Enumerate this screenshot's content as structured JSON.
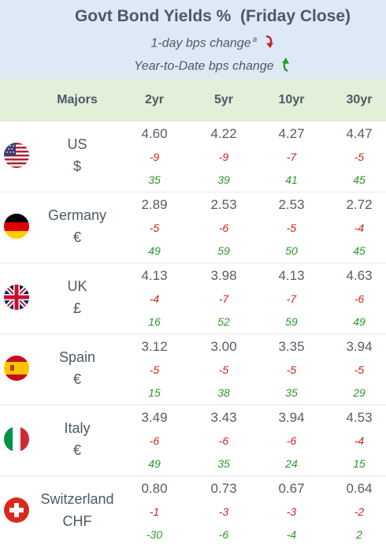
{
  "header": {
    "title": "Govt Bond Yields %  (Friday Close)",
    "legend_day": "1-day bps change",
    "legend_day_sup": "a",
    "legend_ytd": "Year-to-Date bps change",
    "colors": {
      "down": "#cc2222",
      "up": "#2a9a2a",
      "header_bg": "#ddeaf6",
      "colhead_bg": "#e2efd9"
    }
  },
  "columns": {
    "majors": "Majors",
    "c2": "2yr",
    "c5": "5yr",
    "c10": "10yr",
    "c30": "30yr"
  },
  "rows": [
    {
      "name": "US",
      "currency": "$",
      "flag": "us-flag-icon",
      "yield": [
        "4.60",
        "4.22",
        "4.27",
        "4.47"
      ],
      "day": [
        "-9",
        "-9",
        "-7",
        "-5"
      ],
      "ytd": [
        "35",
        "39",
        "41",
        "45"
      ]
    },
    {
      "name": "Germany",
      "currency": "€",
      "flag": "germany-flag-icon",
      "yield": [
        "2.89",
        "2.53",
        "2.53",
        "2.72"
      ],
      "day": [
        "-5",
        "-6",
        "-5",
        "-4"
      ],
      "ytd": [
        "49",
        "59",
        "50",
        "45"
      ]
    },
    {
      "name": "UK",
      "currency": "£",
      "flag": "uk-flag-icon",
      "yield": [
        "4.13",
        "3.98",
        "4.13",
        "4.63"
      ],
      "day": [
        "-4",
        "-7",
        "-7",
        "-6"
      ],
      "ytd": [
        "16",
        "52",
        "59",
        "49"
      ]
    },
    {
      "name": "Spain",
      "currency": "€",
      "flag": "spain-flag-icon",
      "yield": [
        "3.12",
        "3.00",
        "3.35",
        "3.94"
      ],
      "day": [
        "-5",
        "-5",
        "-5",
        "-5"
      ],
      "ytd": [
        "15",
        "38",
        "35",
        "29"
      ]
    },
    {
      "name": "Italy",
      "currency": "€",
      "flag": "italy-flag-icon",
      "yield": [
        "3.49",
        "3.43",
        "3.94",
        "4.53"
      ],
      "day": [
        "-6",
        "-6",
        "-6",
        "-4"
      ],
      "ytd": [
        "49",
        "35",
        "24",
        "15"
      ]
    },
    {
      "name": "Switzerland",
      "currency": "CHF",
      "flag": "switzerland-flag-icon",
      "yield": [
        "0.80",
        "0.73",
        "0.67",
        "0.64"
      ],
      "day": [
        "-1",
        "-3",
        "-3",
        "-2"
      ],
      "ytd": [
        "-30",
        "-6",
        "-4",
        "2"
      ]
    }
  ]
}
